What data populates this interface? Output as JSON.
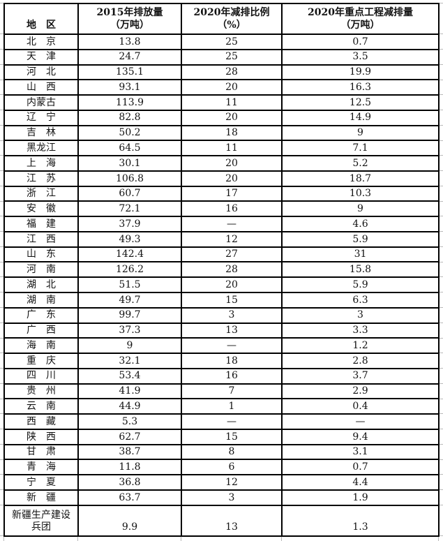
{
  "colors": {
    "background": "#ffffff",
    "border": "#000000",
    "text": "#121212",
    "gridline_stub": "#b9b9b9"
  },
  "table": {
    "columns": [
      {
        "key": "region",
        "label": "地　区"
      },
      {
        "key": "emission_2015",
        "label": "2015年排放量\n（万吨）"
      },
      {
        "key": "reduction_ratio_2020",
        "label": "2020年减排比例\n（%）"
      },
      {
        "key": "key_project_reduction_2020",
        "label": "2020年重点工程减排量\n（万吨）"
      }
    ],
    "rows": [
      {
        "cells": [
          "北　京",
          "13.8",
          "25",
          "0.7"
        ]
      },
      {
        "cells": [
          "天　津",
          "24.7",
          "25",
          "3.5"
        ]
      },
      {
        "cells": [
          "河　北",
          "135.1",
          "28",
          "19.9"
        ]
      },
      {
        "cells": [
          "山　西",
          "93.1",
          "20",
          "16.3"
        ]
      },
      {
        "cells": [
          "内蒙古",
          "113.9",
          "11",
          "12.5"
        ]
      },
      {
        "cells": [
          "辽　宁",
          "82.8",
          "20",
          "14.9"
        ]
      },
      {
        "cells": [
          "吉　林",
          "50.2",
          "18",
          "9"
        ]
      },
      {
        "cells": [
          "黑龙江",
          "64.5",
          "11",
          "7.1"
        ]
      },
      {
        "cells": [
          "上　海",
          "30.1",
          "20",
          "5.2"
        ]
      },
      {
        "cells": [
          "江　苏",
          "106.8",
          "20",
          "18.7"
        ]
      },
      {
        "cells": [
          "浙　江",
          "60.7",
          "17",
          "10.3"
        ]
      },
      {
        "cells": [
          "安　徽",
          "72.1",
          "16",
          "9"
        ]
      },
      {
        "cells": [
          "福　建",
          "37.9",
          "—",
          "4.6"
        ]
      },
      {
        "cells": [
          "江　西",
          "49.3",
          "12",
          "5.9"
        ]
      },
      {
        "cells": [
          "山　东",
          "142.4",
          "27",
          "31"
        ]
      },
      {
        "cells": [
          "河　南",
          "126.2",
          "28",
          "15.8"
        ]
      },
      {
        "cells": [
          "湖　北",
          "51.5",
          "20",
          "5.9"
        ]
      },
      {
        "cells": [
          "湖　南",
          "49.7",
          "15",
          "6.3"
        ]
      },
      {
        "cells": [
          "广　东",
          "99.7",
          "3",
          "3"
        ]
      },
      {
        "cells": [
          "广　西",
          "37.3",
          "13",
          "3.3"
        ]
      },
      {
        "cells": [
          "海　南",
          "9",
          "—",
          "1.2"
        ]
      },
      {
        "cells": [
          "重　庆",
          "32.1",
          "18",
          "2.8"
        ]
      },
      {
        "cells": [
          "四　川",
          "53.4",
          "16",
          "3.7"
        ]
      },
      {
        "cells": [
          "贵　州",
          "41.9",
          "7",
          "2.9"
        ]
      },
      {
        "cells": [
          "云　南",
          "44.9",
          "1",
          "0.4"
        ]
      },
      {
        "cells": [
          "西　藏",
          "5.3",
          "—",
          "—"
        ]
      },
      {
        "cells": [
          "陕　西",
          "62.7",
          "15",
          "9.4"
        ]
      },
      {
        "cells": [
          "甘　肃",
          "38.7",
          "8",
          "3.1"
        ]
      },
      {
        "cells": [
          "青　海",
          "11.8",
          "6",
          "0.7"
        ]
      },
      {
        "cells": [
          "宁　夏",
          "36.8",
          "12",
          "4.4"
        ]
      },
      {
        "cells": [
          "新　疆",
          "63.7",
          "3",
          "1.9"
        ]
      },
      {
        "cells": [
          "新疆生产建设\n兵团",
          "9.9",
          "13",
          "1.3"
        ]
      }
    ]
  }
}
